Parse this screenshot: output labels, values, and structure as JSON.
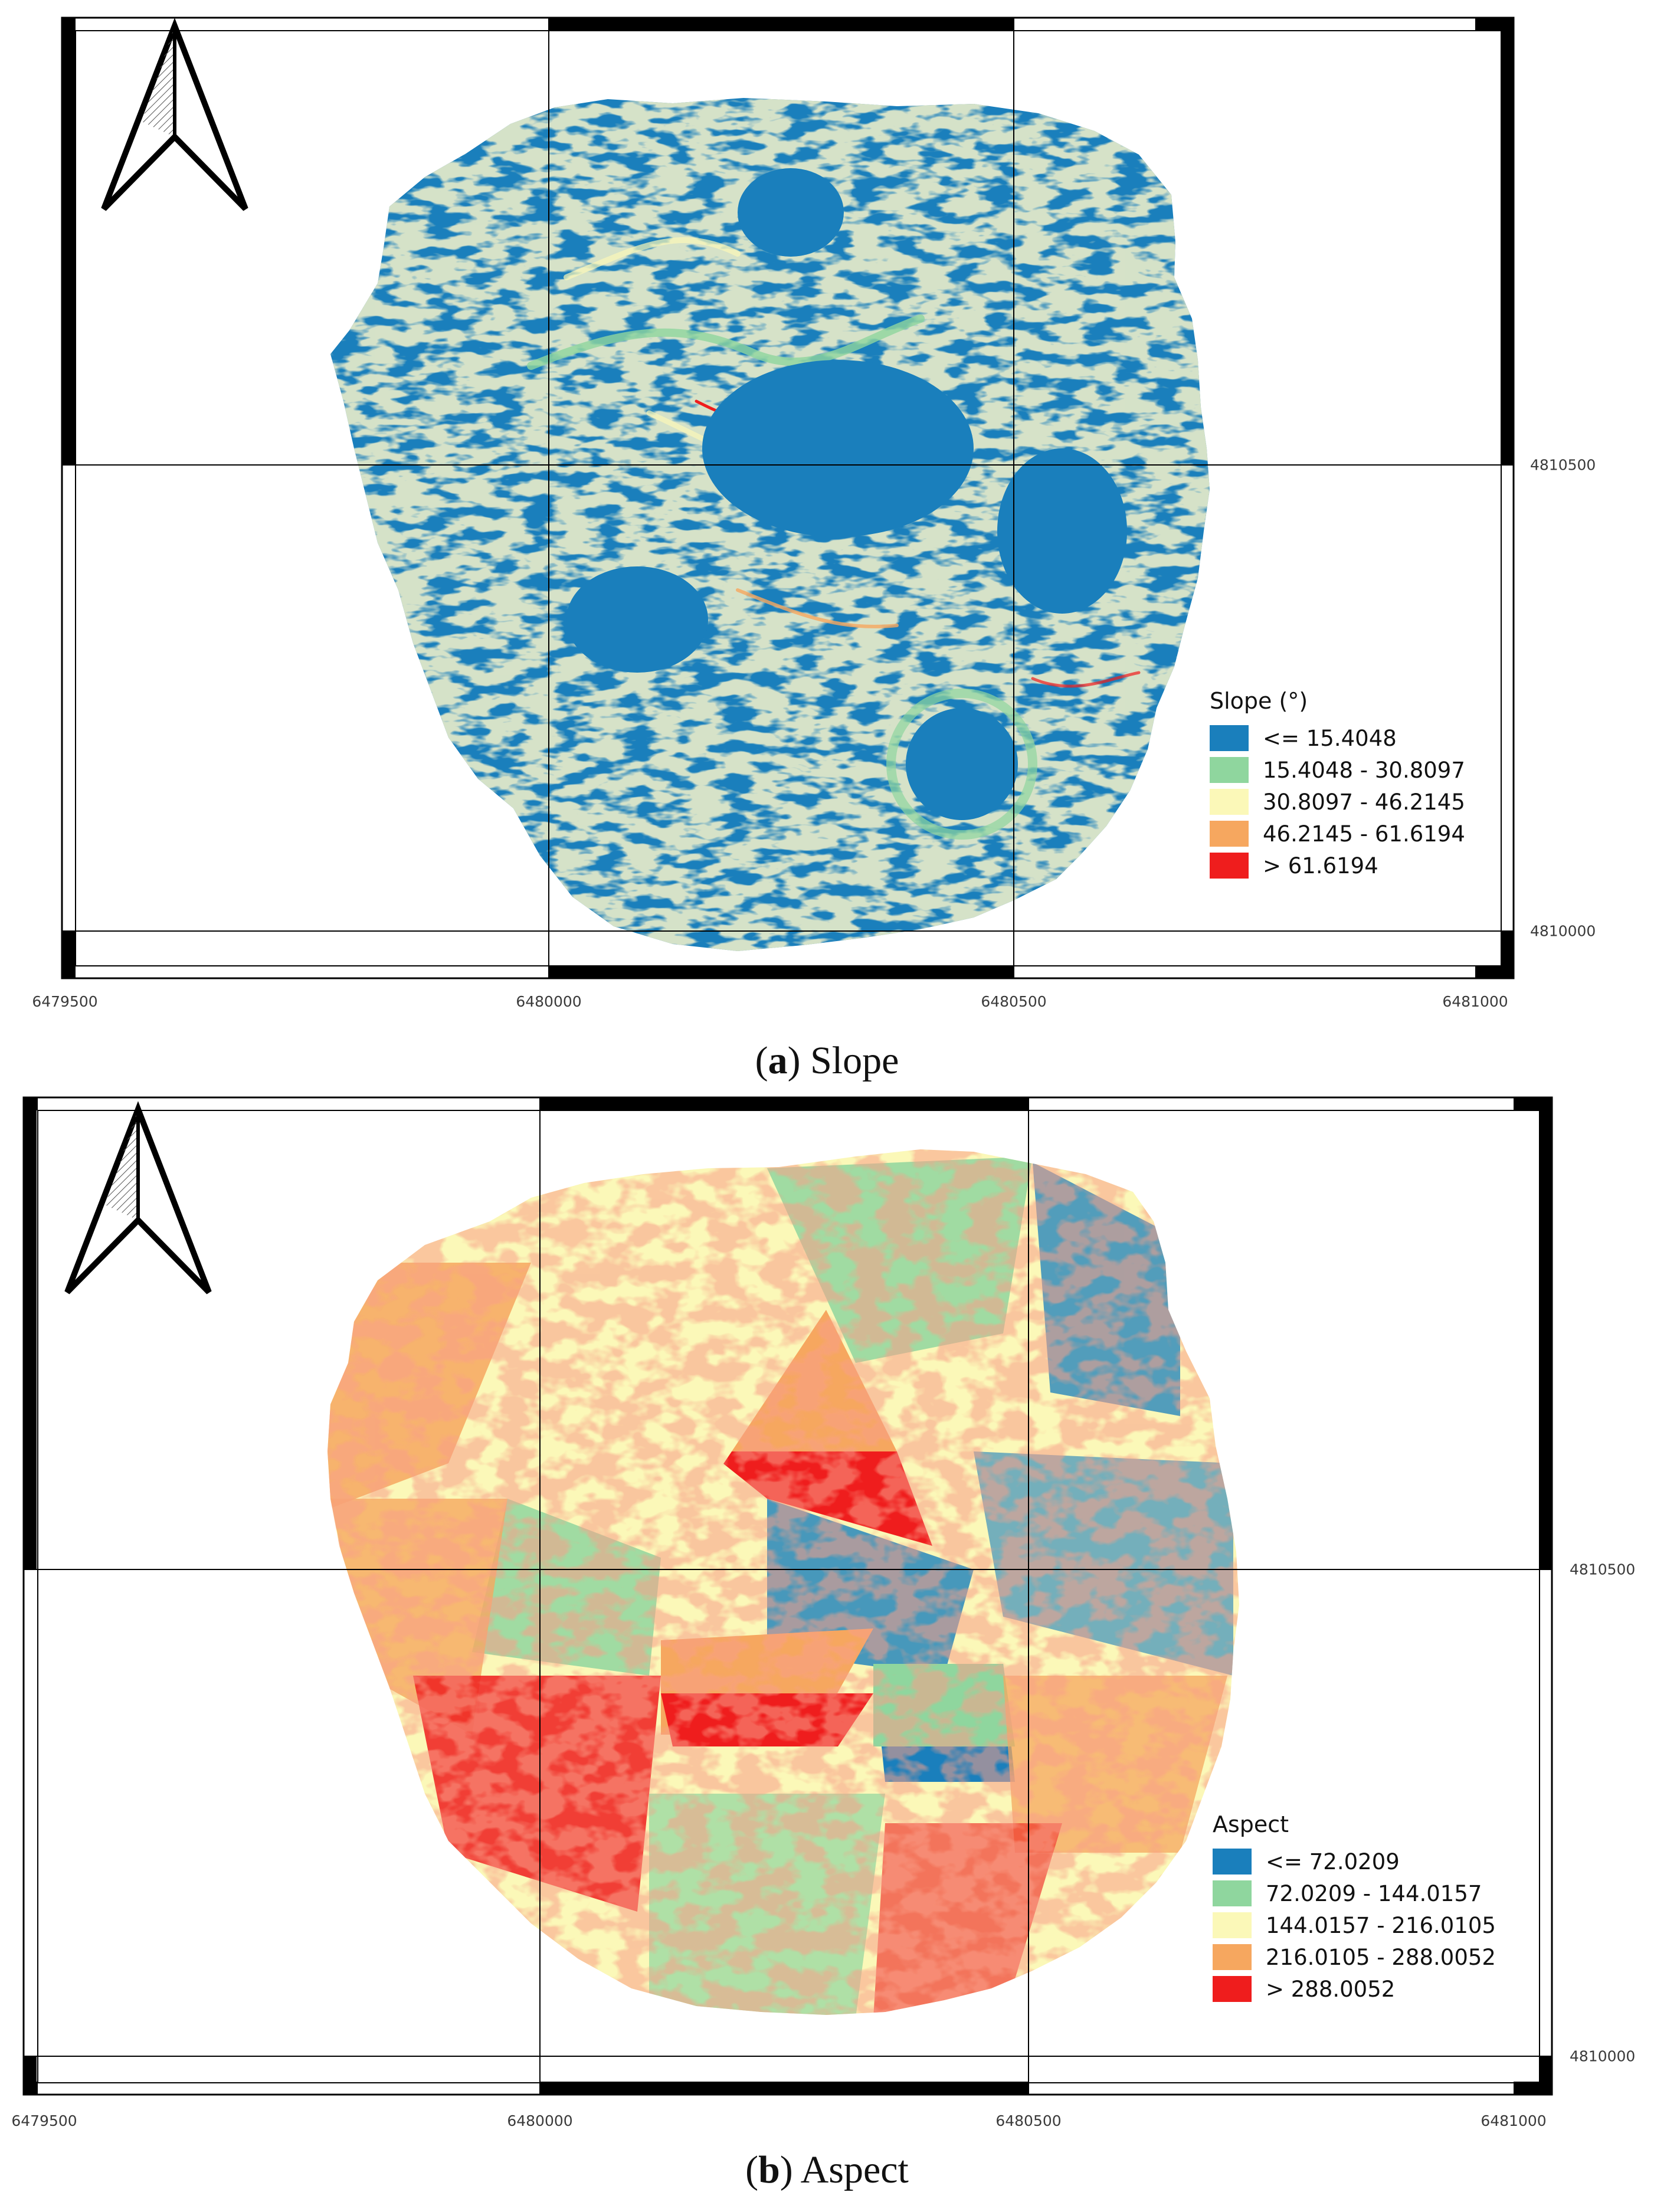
{
  "colors": {
    "class1": "#1a7fbc",
    "class2": "#8fd69e",
    "class3": "#fbf8b8",
    "class4": "#f6a75f",
    "class5": "#ef1d1d",
    "frame": "#000000"
  },
  "icons": {
    "north_arrow": "north-arrow-icon"
  },
  "panel_a": {
    "legend_title": "Slope (°)",
    "legend_items": [
      {
        "label": "<= 15.4048",
        "color": "#1a7fbc"
      },
      {
        "label": "15.4048 - 30.8097",
        "color": "#8fd69e"
      },
      {
        "label": "30.8097 - 46.2145",
        "color": "#fbf8b8"
      },
      {
        "label": "46.2145 - 61.6194",
        "color": "#f6a75f"
      },
      {
        "label": "> 61.6194",
        "color": "#ef1d1d"
      }
    ],
    "x_ticks": [
      "6479500",
      "6480000",
      "6480500",
      "6481000"
    ],
    "y_ticks": [
      "4810500",
      "4810000"
    ],
    "caption_letter": "a",
    "caption_text": "Slope"
  },
  "panel_b": {
    "legend_title": "Aspect",
    "legend_items": [
      {
        "label": "<= 72.0209",
        "color": "#1a7fbc"
      },
      {
        "label": "72.0209 - 144.0157",
        "color": "#8fd69e"
      },
      {
        "label": "144.0157 - 216.0105",
        "color": "#fbf8b8"
      },
      {
        "label": "216.0105 - 288.0052",
        "color": "#f6a75f"
      },
      {
        "label": "> 288.0052",
        "color": "#ef1d1d"
      }
    ],
    "x_ticks": [
      "6479500",
      "6480000",
      "6480500",
      "6481000"
    ],
    "y_ticks": [
      "4810500",
      "4810000"
    ],
    "caption_letter": "b",
    "caption_text": "Aspect"
  }
}
